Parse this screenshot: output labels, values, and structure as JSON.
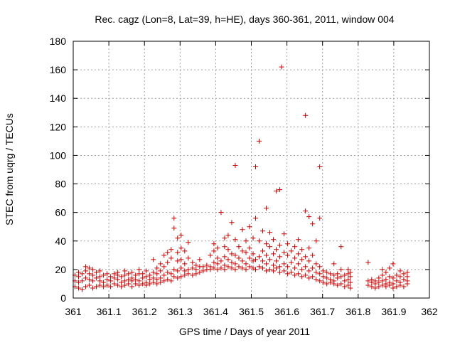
{
  "chart_data": {
    "type": "scatter",
    "title": "Rec. cagz (Lon=8, Lat=39, h=HE), days 360-361, 2011, window 004",
    "xlabel": "GPS time / Days of year 2011",
    "ylabel": "STEC from uqrg / TECUs",
    "xlim": [
      361,
      362
    ],
    "ylim": [
      0,
      180
    ],
    "xticks": [
      "361",
      "361.1",
      "361.2",
      "361.3",
      "361.4",
      "361.5",
      "361.6",
      "361.7",
      "361.8",
      "361.9",
      "362"
    ],
    "yticks": [
      "0",
      "20",
      "40",
      "60",
      "80",
      "100",
      "120",
      "140",
      "160",
      "180"
    ],
    "grid": true,
    "marker": "plus",
    "color": "#cc0000",
    "points": [
      [
        361.005,
        8
      ],
      [
        361.005,
        12
      ],
      [
        361.005,
        16
      ],
      [
        361.015,
        7
      ],
      [
        361.015,
        11
      ],
      [
        361.015,
        15
      ],
      [
        361.015,
        18
      ],
      [
        361.025,
        6
      ],
      [
        361.025,
        12
      ],
      [
        361.025,
        17
      ],
      [
        361.035,
        8
      ],
      [
        361.035,
        14
      ],
      [
        361.035,
        19
      ],
      [
        361.035,
        22
      ],
      [
        361.045,
        9
      ],
      [
        361.045,
        13
      ],
      [
        361.045,
        17
      ],
      [
        361.045,
        21
      ],
      [
        361.055,
        7
      ],
      [
        361.055,
        12
      ],
      [
        361.055,
        16
      ],
      [
        361.055,
        20
      ],
      [
        361.065,
        8
      ],
      [
        361.065,
        14
      ],
      [
        361.065,
        18
      ],
      [
        361.075,
        9
      ],
      [
        361.075,
        12
      ],
      [
        361.075,
        15
      ],
      [
        361.075,
        19
      ],
      [
        361.085,
        8
      ],
      [
        361.085,
        11
      ],
      [
        361.085,
        16
      ],
      [
        361.095,
        9
      ],
      [
        361.095,
        13
      ],
      [
        361.095,
        17
      ],
      [
        361.105,
        8
      ],
      [
        361.105,
        12
      ],
      [
        361.105,
        15
      ],
      [
        361.115,
        10
      ],
      [
        361.115,
        14
      ],
      [
        361.115,
        17
      ],
      [
        361.125,
        9
      ],
      [
        361.125,
        13
      ],
      [
        361.125,
        16
      ],
      [
        361.125,
        18
      ],
      [
        361.135,
        8
      ],
      [
        361.135,
        11
      ],
      [
        361.135,
        15
      ],
      [
        361.145,
        9
      ],
      [
        361.145,
        12
      ],
      [
        361.145,
        16
      ],
      [
        361.145,
        19
      ],
      [
        361.155,
        10
      ],
      [
        361.155,
        13
      ],
      [
        361.155,
        17
      ],
      [
        361.165,
        8
      ],
      [
        361.165,
        12
      ],
      [
        361.165,
        14
      ],
      [
        361.165,
        18
      ],
      [
        361.175,
        10
      ],
      [
        361.175,
        13
      ],
      [
        361.175,
        16
      ],
      [
        361.185,
        9
      ],
      [
        361.185,
        12
      ],
      [
        361.185,
        17
      ],
      [
        361.185,
        20
      ],
      [
        361.195,
        10
      ],
      [
        361.195,
        14
      ],
      [
        361.195,
        17
      ],
      [
        361.205,
        9
      ],
      [
        361.205,
        11
      ],
      [
        361.205,
        15
      ],
      [
        361.205,
        19
      ],
      [
        361.215,
        10
      ],
      [
        361.215,
        13
      ],
      [
        361.215,
        16
      ],
      [
        361.225,
        11
      ],
      [
        361.225,
        14
      ],
      [
        361.225,
        18
      ],
      [
        361.225,
        27
      ],
      [
        361.235,
        10
      ],
      [
        361.235,
        13
      ],
      [
        361.235,
        17
      ],
      [
        361.235,
        21
      ],
      [
        361.245,
        11
      ],
      [
        361.245,
        14
      ],
      [
        361.245,
        19
      ],
      [
        361.245,
        24
      ],
      [
        361.255,
        12
      ],
      [
        361.255,
        16
      ],
      [
        361.255,
        22
      ],
      [
        361.255,
        30
      ],
      [
        361.265,
        13
      ],
      [
        361.265,
        18
      ],
      [
        361.265,
        25
      ],
      [
        361.265,
        32
      ],
      [
        361.275,
        12
      ],
      [
        361.275,
        17
      ],
      [
        361.275,
        28
      ],
      [
        361.275,
        34
      ],
      [
        361.283,
        15
      ],
      [
        361.283,
        20
      ],
      [
        361.283,
        49
      ],
      [
        361.283,
        56
      ],
      [
        361.293,
        14
      ],
      [
        361.293,
        19
      ],
      [
        361.293,
        26
      ],
      [
        361.293,
        32
      ],
      [
        361.293,
        42
      ],
      [
        361.303,
        15
      ],
      [
        361.303,
        21
      ],
      [
        361.303,
        27
      ],
      [
        361.303,
        35
      ],
      [
        361.303,
        44
      ],
      [
        361.313,
        16
      ],
      [
        361.313,
        19
      ],
      [
        361.313,
        24
      ],
      [
        361.313,
        33
      ],
      [
        361.323,
        17
      ],
      [
        361.323,
        20
      ],
      [
        361.323,
        28
      ],
      [
        361.323,
        39
      ],
      [
        361.335,
        16
      ],
      [
        361.335,
        21
      ],
      [
        361.335,
        25
      ],
      [
        361.345,
        17
      ],
      [
        361.345,
        20
      ],
      [
        361.345,
        23
      ],
      [
        361.355,
        18
      ],
      [
        361.355,
        22
      ],
      [
        361.355,
        27
      ],
      [
        361.365,
        19
      ],
      [
        361.365,
        22
      ],
      [
        361.375,
        20
      ],
      [
        361.375,
        23
      ],
      [
        361.385,
        20
      ],
      [
        361.385,
        22
      ],
      [
        361.385,
        30
      ],
      [
        361.395,
        21
      ],
      [
        361.395,
        25
      ],
      [
        361.395,
        33
      ],
      [
        361.395,
        38
      ],
      [
        361.405,
        20
      ],
      [
        361.405,
        24
      ],
      [
        361.405,
        28
      ],
      [
        361.405,
        35
      ],
      [
        361.415,
        21
      ],
      [
        361.415,
        26
      ],
      [
        361.415,
        60
      ],
      [
        361.425,
        20
      ],
      [
        361.425,
        23
      ],
      [
        361.425,
        29
      ],
      [
        361.425,
        36
      ],
      [
        361.425,
        42
      ],
      [
        361.435,
        22
      ],
      [
        361.435,
        27
      ],
      [
        361.435,
        34
      ],
      [
        361.435,
        44
      ],
      [
        361.445,
        21
      ],
      [
        361.445,
        25
      ],
      [
        361.445,
        31
      ],
      [
        361.445,
        53
      ],
      [
        361.455,
        20
      ],
      [
        361.455,
        24
      ],
      [
        361.455,
        30
      ],
      [
        361.455,
        41
      ],
      [
        361.455,
        93
      ],
      [
        361.465,
        22
      ],
      [
        361.465,
        28
      ],
      [
        361.465,
        36
      ],
      [
        361.475,
        21
      ],
      [
        361.475,
        26
      ],
      [
        361.475,
        33
      ],
      [
        361.475,
        48
      ],
      [
        361.485,
        20
      ],
      [
        361.485,
        24
      ],
      [
        361.485,
        32
      ],
      [
        361.485,
        40
      ],
      [
        361.495,
        22
      ],
      [
        361.495,
        28
      ],
      [
        361.495,
        35
      ],
      [
        361.495,
        50
      ],
      [
        361.505,
        21
      ],
      [
        361.505,
        26
      ],
      [
        361.505,
        31
      ],
      [
        361.505,
        42
      ],
      [
        361.512,
        20
      ],
      [
        361.512,
        27
      ],
      [
        361.512,
        56
      ],
      [
        361.512,
        92
      ],
      [
        361.522,
        22
      ],
      [
        361.522,
        29
      ],
      [
        361.522,
        40
      ],
      [
        361.522,
        110
      ],
      [
        361.532,
        21
      ],
      [
        361.532,
        26
      ],
      [
        361.532,
        33
      ],
      [
        361.532,
        47
      ],
      [
        361.542,
        19
      ],
      [
        361.542,
        24
      ],
      [
        361.542,
        30
      ],
      [
        361.542,
        38
      ],
      [
        361.542,
        63
      ],
      [
        361.552,
        20
      ],
      [
        361.552,
        27
      ],
      [
        361.552,
        36
      ],
      [
        361.552,
        46
      ],
      [
        361.562,
        19
      ],
      [
        361.562,
        23
      ],
      [
        361.562,
        31
      ],
      [
        361.562,
        41
      ],
      [
        361.57,
        21
      ],
      [
        361.57,
        26
      ],
      [
        361.57,
        34
      ],
      [
        361.57,
        75
      ],
      [
        361.58,
        18
      ],
      [
        361.58,
        22
      ],
      [
        361.58,
        29
      ],
      [
        361.58,
        37
      ],
      [
        361.58,
        76
      ],
      [
        361.585,
        162
      ],
      [
        361.592,
        19
      ],
      [
        361.592,
        24
      ],
      [
        361.592,
        32
      ],
      [
        361.592,
        45
      ],
      [
        361.602,
        17
      ],
      [
        361.602,
        22
      ],
      [
        361.602,
        30
      ],
      [
        361.602,
        38
      ],
      [
        361.612,
        18
      ],
      [
        361.612,
        25
      ],
      [
        361.612,
        33
      ],
      [
        361.622,
        16
      ],
      [
        361.622,
        21
      ],
      [
        361.622,
        28
      ],
      [
        361.622,
        36
      ],
      [
        361.632,
        17
      ],
      [
        361.632,
        24
      ],
      [
        361.632,
        31
      ],
      [
        361.632,
        41
      ],
      [
        361.642,
        15
      ],
      [
        361.642,
        20
      ],
      [
        361.642,
        27
      ],
      [
        361.642,
        34
      ],
      [
        361.652,
        16
      ],
      [
        361.652,
        22
      ],
      [
        361.652,
        29
      ],
      [
        361.652,
        61
      ],
      [
        361.652,
        128
      ],
      [
        361.662,
        14
      ],
      [
        361.662,
        19
      ],
      [
        361.662,
        26
      ],
      [
        361.662,
        35
      ],
      [
        361.662,
        57
      ],
      [
        361.672,
        15
      ],
      [
        361.672,
        21
      ],
      [
        361.672,
        30
      ],
      [
        361.672,
        52
      ],
      [
        361.682,
        13
      ],
      [
        361.682,
        18
      ],
      [
        361.682,
        24
      ],
      [
        361.682,
        40
      ],
      [
        361.692,
        12
      ],
      [
        361.692,
        17
      ],
      [
        361.692,
        22
      ],
      [
        361.692,
        56
      ],
      [
        361.692,
        92
      ],
      [
        361.702,
        11
      ],
      [
        361.702,
        15
      ],
      [
        361.702,
        19
      ],
      [
        361.712,
        10
      ],
      [
        361.712,
        14
      ],
      [
        361.712,
        18
      ],
      [
        361.722,
        11
      ],
      [
        361.722,
        13
      ],
      [
        361.722,
        17
      ],
      [
        361.732,
        10
      ],
      [
        361.732,
        12
      ],
      [
        361.732,
        16
      ],
      [
        361.732,
        24
      ],
      [
        361.742,
        9
      ],
      [
        361.742,
        14
      ],
      [
        361.742,
        17
      ],
      [
        361.752,
        10
      ],
      [
        361.752,
        15
      ],
      [
        361.752,
        20
      ],
      [
        361.752,
        36
      ],
      [
        361.762,
        8
      ],
      [
        361.762,
        12
      ],
      [
        361.762,
        16
      ],
      [
        361.772,
        9
      ],
      [
        361.772,
        13
      ],
      [
        361.772,
        17
      ],
      [
        361.772,
        20
      ],
      [
        361.778,
        7
      ],
      [
        361.778,
        11
      ],
      [
        361.778,
        15
      ],
      [
        361.778,
        18
      ],
      [
        361.828,
        9
      ],
      [
        361.828,
        12
      ],
      [
        361.828,
        25
      ],
      [
        361.838,
        8
      ],
      [
        361.838,
        11
      ],
      [
        361.838,
        13
      ],
      [
        361.848,
        7
      ],
      [
        361.848,
        10
      ],
      [
        361.848,
        12
      ],
      [
        361.858,
        8
      ],
      [
        361.858,
        11
      ],
      [
        361.858,
        14
      ],
      [
        361.868,
        9
      ],
      [
        361.868,
        12
      ],
      [
        361.868,
        16
      ],
      [
        361.868,
        20
      ],
      [
        361.878,
        8
      ],
      [
        361.878,
        10
      ],
      [
        361.878,
        13
      ],
      [
        361.878,
        18
      ],
      [
        361.888,
        9
      ],
      [
        361.888,
        11
      ],
      [
        361.888,
        15
      ],
      [
        361.888,
        21
      ],
      [
        361.898,
        7
      ],
      [
        361.898,
        10
      ],
      [
        361.898,
        14
      ],
      [
        361.898,
        24
      ],
      [
        361.908,
        8
      ],
      [
        361.908,
        12
      ],
      [
        361.908,
        16
      ],
      [
        361.918,
        9
      ],
      [
        361.918,
        11
      ],
      [
        361.918,
        15
      ],
      [
        361.918,
        19
      ],
      [
        361.928,
        8
      ],
      [
        361.928,
        13
      ],
      [
        361.928,
        17
      ],
      [
        361.938,
        10
      ],
      [
        361.938,
        12
      ],
      [
        361.938,
        15
      ],
      [
        361.938,
        18
      ]
    ]
  }
}
